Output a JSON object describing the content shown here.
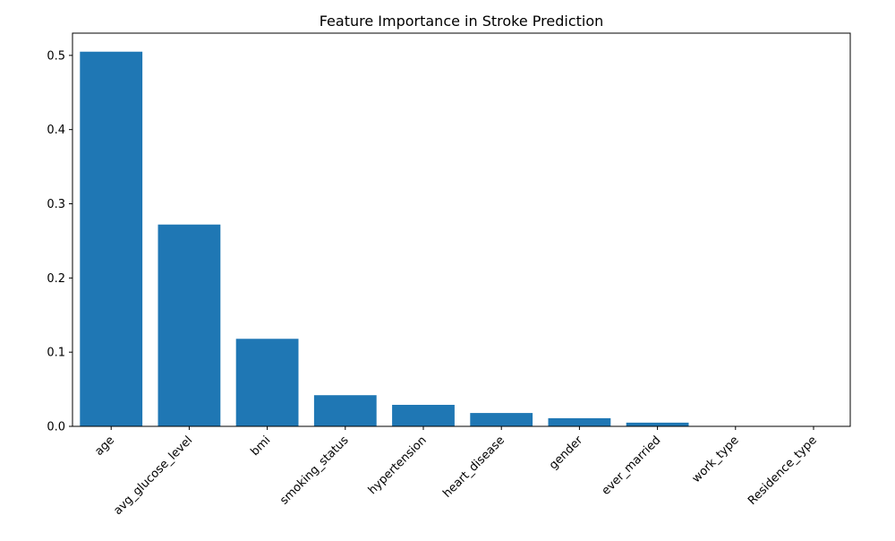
{
  "chart_data": {
    "type": "bar",
    "title": "Feature Importance in Stroke Prediction",
    "xlabel": "",
    "ylabel": "",
    "categories": [
      "age",
      "avg_glucose_level",
      "bmi",
      "smoking_status",
      "hypertension",
      "heart_disease",
      "gender",
      "ever_married",
      "work_type",
      "Residence_type"
    ],
    "values": [
      0.505,
      0.272,
      0.118,
      0.042,
      0.029,
      0.018,
      0.011,
      0.005,
      0.0,
      0.0
    ],
    "ylim": [
      0,
      0.53
    ],
    "yticks": [
      0.0,
      0.1,
      0.2,
      0.3,
      0.4,
      0.5
    ],
    "ytick_labels": [
      "0.0",
      "0.1",
      "0.2",
      "0.3",
      "0.4",
      "0.5"
    ],
    "bar_color": "#1f77b4",
    "grid": false,
    "legend": "none"
  }
}
